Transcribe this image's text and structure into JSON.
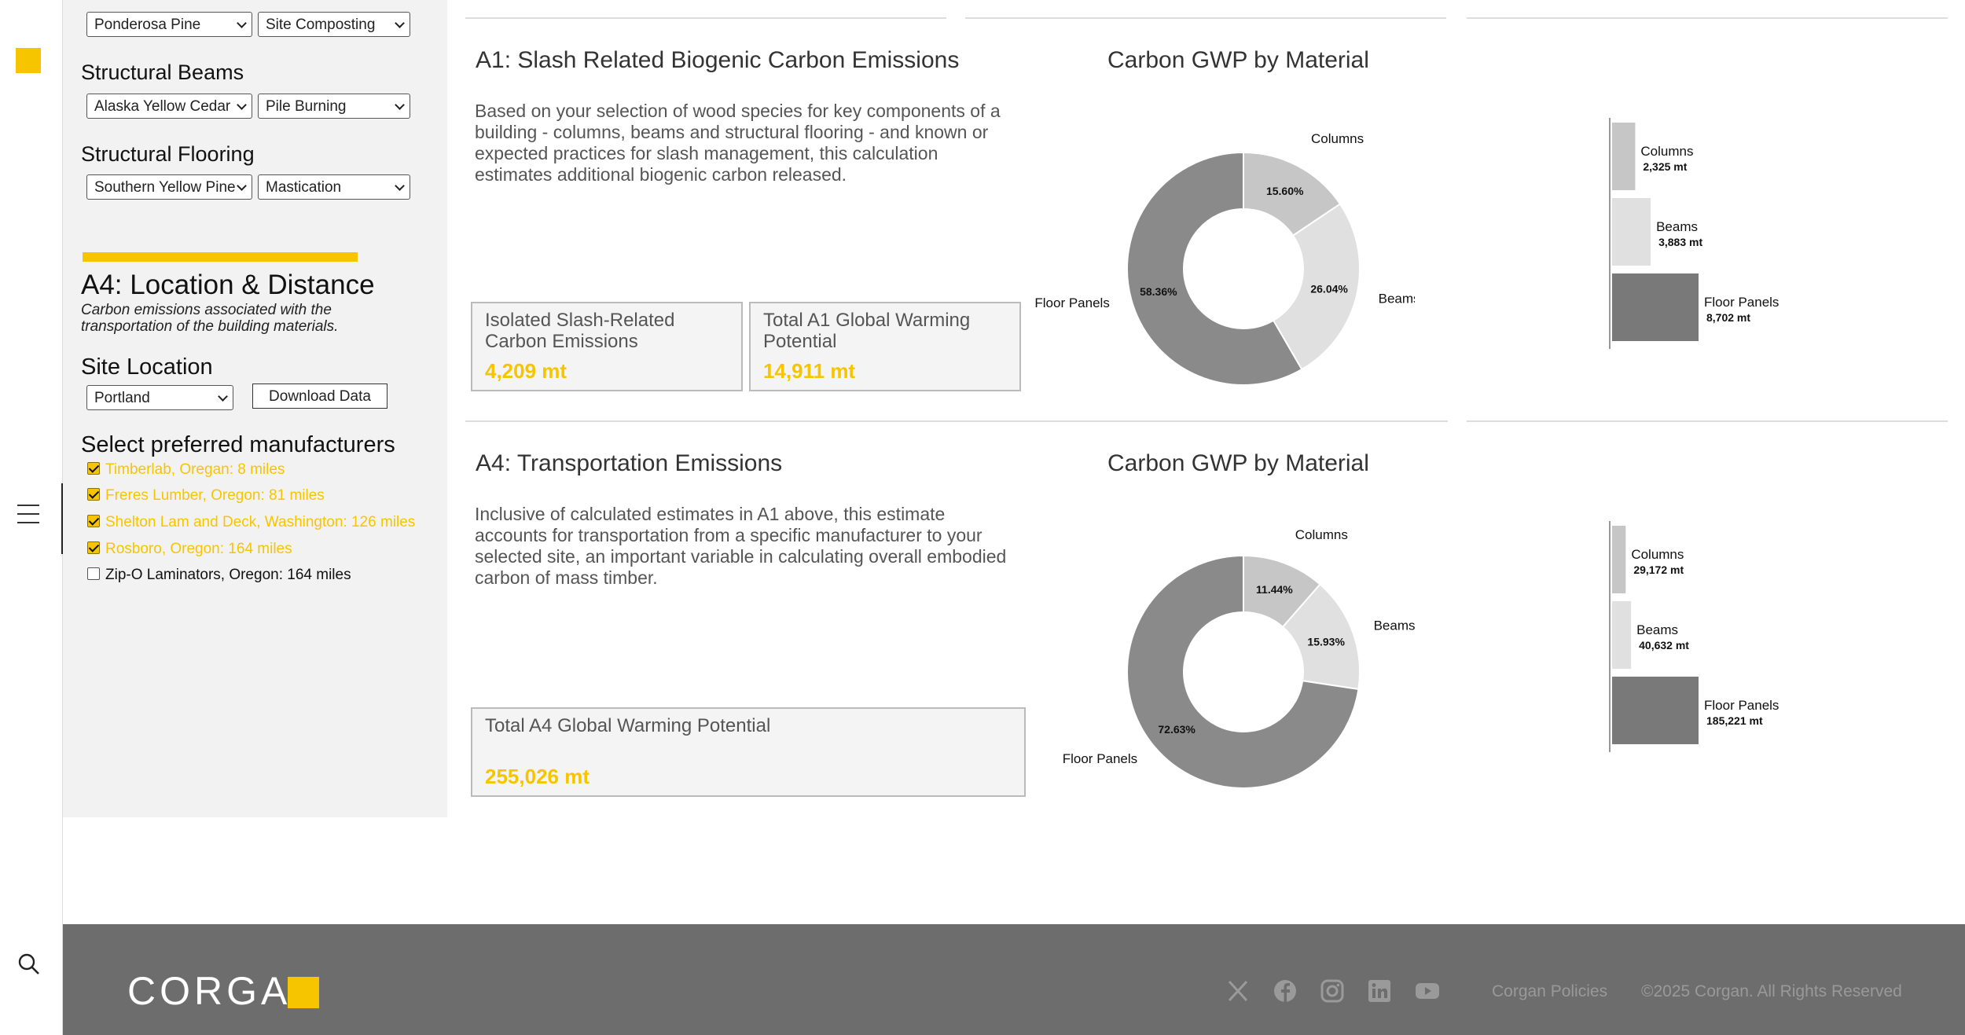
{
  "sidebar": {
    "columns": {
      "species": "Ponderosa Pine",
      "practice": "Site Composting"
    },
    "beams": {
      "label": "Structural Beams",
      "species": "Alaska Yellow Cedar",
      "practice": "Pile Burning"
    },
    "flooring": {
      "label": "Structural Flooring",
      "species": "Southern Yellow Pine",
      "practice": "Mastication"
    },
    "a4_title": "A4: Location & Distance",
    "a4_desc": "Carbon emissions associated with the transportation of the building materials.",
    "site_label": "Site Location",
    "site_value": "Portland",
    "download_label": "Download Data",
    "manufacturers_label": "Select preferred manufacturers",
    "manufacturers": [
      {
        "label": "Timberlab, Oregan: 8 miles",
        "checked": true
      },
      {
        "label": "Freres Lumber, Oregon: 81 miles",
        "checked": true
      },
      {
        "label": "Shelton Lam and Deck, Washington: 126 miles",
        "checked": true
      },
      {
        "label": "Rosboro, Oregon: 164 miles",
        "checked": true
      },
      {
        "label": "Zip-O Laminators, Oregon: 164 miles",
        "checked": false
      }
    ]
  },
  "a1": {
    "title": "A1: Slash Related Biogenic Carbon Emissions",
    "desc": "Based on your selection of wood species for key components of a building - columns, beams and structural flooring - and known or expected practices for slash management, this calculation estimates additional biogenic carbon released.",
    "card1": {
      "label": "Isolated Slash-Related Carbon Emissions",
      "value": "4,209 mt"
    },
    "card2": {
      "label": "Total A1 Global Warming Potential",
      "value": "14,911 mt"
    }
  },
  "a4": {
    "title": "A4: Transportation Emissions",
    "desc": "Inclusive of calculated estimates in A1 above, this estimate accounts for transportation from a specific manufacturer to your selected site, an important variable in calculating overall embodied carbon of mass timber.",
    "card": {
      "label": "Total A4 Global Warming Potential",
      "value": "255,026 mt"
    }
  },
  "chart_data": [
    {
      "type": "pie",
      "title": "Carbon GWP by Material",
      "categories": [
        "Columns",
        "Beams",
        "Floor Panels"
      ],
      "values": [
        15.6,
        26.04,
        58.36
      ],
      "value_labels": [
        "15.60%",
        "26.04%",
        "58.36%"
      ],
      "colors": [
        "#c6c6c6",
        "#e0e0e0",
        "#8a8a8a"
      ],
      "donut": true
    },
    {
      "type": "bar",
      "orientation": "horizontal",
      "categories": [
        "Columns",
        "Beams",
        "Floor Panels"
      ],
      "values": [
        2325,
        3883,
        8702
      ],
      "value_labels": [
        "2,325 mt",
        "3,883 mt",
        "8,702 mt"
      ],
      "colors": [
        "#c6c6c6",
        "#e0e0e0",
        "#797979"
      ]
    },
    {
      "type": "pie",
      "title": "Carbon GWP by Material",
      "categories": [
        "Columns",
        "Beams",
        "Floor Panels"
      ],
      "values": [
        11.44,
        15.93,
        72.63
      ],
      "value_labels": [
        "11.44%",
        "15.93%",
        "72.63%"
      ],
      "colors": [
        "#c6c6c6",
        "#e0e0e0",
        "#8a8a8a"
      ],
      "donut": true
    },
    {
      "type": "bar",
      "orientation": "horizontal",
      "categories": [
        "Columns",
        "Beams",
        "Floor Panels"
      ],
      "values": [
        29172,
        40632,
        185221
      ],
      "value_labels": [
        "29,172 mt",
        "40,632 mt",
        "185,221 mt"
      ],
      "colors": [
        "#c6c6c6",
        "#e0e0e0",
        "#797979"
      ]
    }
  ],
  "footer": {
    "logo": "CORGAN",
    "social_icons": [
      "x-icon",
      "facebook-icon",
      "instagram-icon",
      "linkedin-icon",
      "youtube-icon"
    ],
    "policies": "Corgan Policies",
    "copyright": "©2025 Corgan. All Rights Reserved"
  },
  "colors": {
    "accent": "#f7c500",
    "panel": "#f2f2f2",
    "footer": "#6d6d6d"
  }
}
